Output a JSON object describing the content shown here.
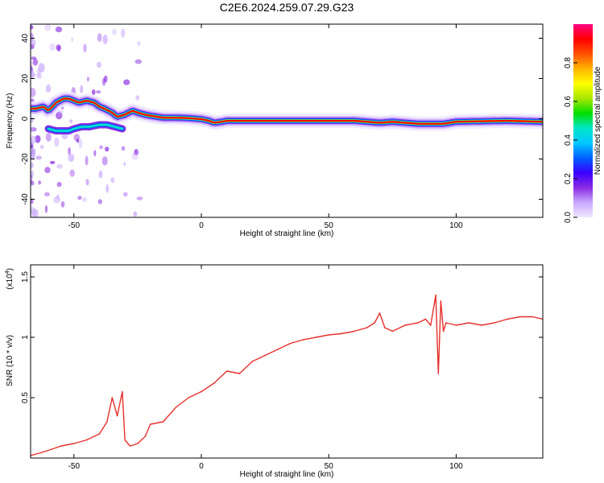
{
  "title": "C2E6.2024.259.07.29.G23",
  "chart_data": [
    {
      "type": "heatmap",
      "xlabel": "Height of straight line (km)",
      "ylabel": "Frequency (Hz)",
      "xlim": [
        -67,
        134
      ],
      "ylim": [
        -49,
        47
      ],
      "xticks": [
        -50,
        0,
        50,
        100
      ],
      "yticks": [
        -40,
        -20,
        0,
        20,
        40
      ],
      "grid": false,
      "ridge": {
        "x": [
          -65,
          -62,
          -60,
          -57,
          -54,
          -52,
          -50,
          -48,
          -45,
          -42,
          -40,
          -38,
          -35,
          -33,
          -30,
          -27,
          -25,
          -22,
          -20,
          -15,
          -10,
          -5,
          0,
          3,
          5,
          8,
          10,
          20,
          40,
          60,
          65,
          70,
          75,
          80,
          85,
          90,
          95,
          100,
          120,
          134
        ],
        "y": [
          5,
          6,
          4,
          8,
          10,
          10,
          9,
          8,
          9,
          8,
          6,
          5,
          3,
          1,
          2,
          4,
          3,
          2,
          1.5,
          0.5,
          0.5,
          0.3,
          -0.2,
          -1,
          -2,
          -1.5,
          -1,
          -1,
          -1,
          -1,
          -1.5,
          -2,
          -1.5,
          -2,
          -2.5,
          -2.5,
          -2.5,
          -1.5,
          -1,
          -1.5
        ]
      },
      "lower_branch": {
        "x": [
          -60,
          -57,
          -55,
          -52,
          -50,
          -47,
          -44,
          -40,
          -37,
          -34,
          -31
        ],
        "y": [
          -5,
          -6,
          -6,
          -6,
          -5,
          -4,
          -4,
          -3,
          -3,
          -4,
          -5
        ]
      },
      "colorbar": {
        "label": "Normalized spectral amplitude",
        "ticks": [
          0.0,
          0.2,
          0.4,
          0.6,
          0.8
        ],
        "range": [
          0,
          1
        ],
        "colors": [
          "#f0e8ff",
          "#c8a8ff",
          "#8a2be2",
          "#3a00ff",
          "#0060ff",
          "#00c8ff",
          "#00e6c8",
          "#00e000",
          "#a8e600",
          "#ffff00",
          "#ffb400",
          "#ff5000",
          "#ff0000",
          "#ff0080"
        ]
      }
    },
    {
      "type": "line",
      "xlabel": "Height of straight line (km)",
      "ylabel": "SNR (10 * v/v)",
      "scale_label": "(x10",
      "scale_exp": "4",
      "xlim": [
        -67,
        134
      ],
      "ylim": [
        0.0,
        1.6
      ],
      "xticks": [
        -50,
        0,
        50,
        100
      ],
      "yticks": [
        0.5,
        1.0,
        1.5
      ],
      "grid": false,
      "series": [
        {
          "color": "#e8302a",
          "x": [
            -67,
            -62,
            -55,
            -50,
            -45,
            -40,
            -37,
            -35,
            -33,
            -31,
            -30,
            -28,
            -25,
            -22,
            -20,
            -15,
            -10,
            -5,
            0,
            5,
            10,
            15,
            20,
            25,
            30,
            35,
            40,
            45,
            50,
            55,
            60,
            65,
            68,
            70,
            72,
            75,
            80,
            85,
            88,
            90,
            92,
            93,
            94,
            95,
            96,
            100,
            105,
            110,
            115,
            120,
            125,
            130,
            134
          ],
          "y": [
            0.02,
            0.05,
            0.1,
            0.12,
            0.15,
            0.2,
            0.3,
            0.5,
            0.35,
            0.55,
            0.15,
            0.1,
            0.12,
            0.18,
            0.28,
            0.3,
            0.42,
            0.5,
            0.55,
            0.62,
            0.72,
            0.7,
            0.8,
            0.85,
            0.9,
            0.95,
            0.98,
            1.0,
            1.02,
            1.03,
            1.05,
            1.08,
            1.12,
            1.2,
            1.08,
            1.05,
            1.1,
            1.12,
            1.15,
            1.1,
            1.35,
            0.7,
            1.3,
            1.05,
            1.12,
            1.1,
            1.12,
            1.1,
            1.12,
            1.15,
            1.17,
            1.17,
            1.15
          ]
        }
      ]
    }
  ]
}
